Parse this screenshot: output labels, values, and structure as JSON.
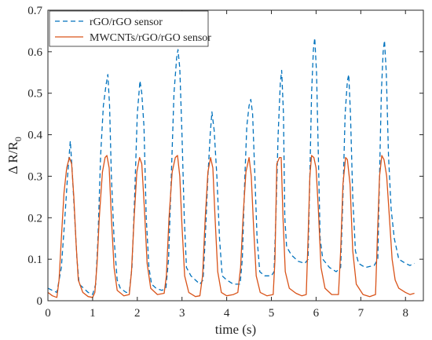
{
  "chart_data": {
    "type": "line",
    "xlabel": "time (s)",
    "ylabel_main": "Δ R/R",
    "ylabel_subscript": "0",
    "xlim": [
      0,
      8.4
    ],
    "ylim": [
      0,
      0.7
    ],
    "xticks": [
      0,
      1,
      2,
      3,
      4,
      5,
      6,
      7,
      8
    ],
    "yticks": [
      0,
      0.1,
      0.2,
      0.3,
      0.4,
      0.5,
      0.6,
      0.7
    ],
    "xtick_labels": [
      "0",
      "1",
      "2",
      "3",
      "4",
      "5",
      "6",
      "7",
      "8"
    ],
    "ytick_labels": [
      "0",
      "0.1",
      "0.2",
      "0.3",
      "0.4",
      "0.5",
      "0.6",
      "0.7"
    ],
    "grid": false,
    "legend_position": "top-left",
    "series": [
      {
        "name": "rGO/rGO sensor",
        "color": "#0072BD",
        "dash": "dashed",
        "points": [
          [
            0.0,
            0.03
          ],
          [
            0.1,
            0.025
          ],
          [
            0.2,
            0.02
          ],
          [
            0.3,
            0.08
          ],
          [
            0.38,
            0.2
          ],
          [
            0.44,
            0.3
          ],
          [
            0.5,
            0.385
          ],
          [
            0.55,
            0.3
          ],
          [
            0.6,
            0.2
          ],
          [
            0.65,
            0.1
          ],
          [
            0.7,
            0.04
          ],
          [
            0.8,
            0.03
          ],
          [
            0.9,
            0.02
          ],
          [
            1.0,
            0.015
          ],
          [
            1.07,
            0.04
          ],
          [
            1.12,
            0.15
          ],
          [
            1.18,
            0.35
          ],
          [
            1.24,
            0.47
          ],
          [
            1.3,
            0.52
          ],
          [
            1.34,
            0.545
          ],
          [
            1.38,
            0.47
          ],
          [
            1.42,
            0.3
          ],
          [
            1.48,
            0.15
          ],
          [
            1.55,
            0.05
          ],
          [
            1.62,
            0.03
          ],
          [
            1.75,
            0.02
          ],
          [
            1.82,
            0.02
          ],
          [
            1.88,
            0.08
          ],
          [
            1.94,
            0.25
          ],
          [
            2.0,
            0.45
          ],
          [
            2.06,
            0.53
          ],
          [
            2.1,
            0.5
          ],
          [
            2.15,
            0.42
          ],
          [
            2.2,
            0.2
          ],
          [
            2.26,
            0.08
          ],
          [
            2.32,
            0.04
          ],
          [
            2.42,
            0.03
          ],
          [
            2.55,
            0.025
          ],
          [
            2.64,
            0.03
          ],
          [
            2.7,
            0.1
          ],
          [
            2.76,
            0.3
          ],
          [
            2.82,
            0.5
          ],
          [
            2.88,
            0.585
          ],
          [
            2.91,
            0.605
          ],
          [
            2.95,
            0.56
          ],
          [
            3.0,
            0.4
          ],
          [
            3.05,
            0.2
          ],
          [
            3.1,
            0.08
          ],
          [
            3.2,
            0.06
          ],
          [
            3.3,
            0.05
          ],
          [
            3.4,
            0.04
          ],
          [
            3.47,
            0.05
          ],
          [
            3.52,
            0.15
          ],
          [
            3.58,
            0.3
          ],
          [
            3.63,
            0.4
          ],
          [
            3.67,
            0.455
          ],
          [
            3.72,
            0.41
          ],
          [
            3.78,
            0.3
          ],
          [
            3.84,
            0.15
          ],
          [
            3.9,
            0.06
          ],
          [
            4.0,
            0.05
          ],
          [
            4.15,
            0.04
          ],
          [
            4.3,
            0.04
          ],
          [
            4.35,
            0.1
          ],
          [
            4.4,
            0.28
          ],
          [
            4.45,
            0.42
          ],
          [
            4.5,
            0.47
          ],
          [
            4.54,
            0.485
          ],
          [
            4.58,
            0.45
          ],
          [
            4.63,
            0.3
          ],
          [
            4.68,
            0.15
          ],
          [
            4.74,
            0.07
          ],
          [
            4.85,
            0.06
          ],
          [
            5.0,
            0.06
          ],
          [
            5.06,
            0.07
          ],
          [
            5.1,
            0.2
          ],
          [
            5.15,
            0.4
          ],
          [
            5.2,
            0.525
          ],
          [
            5.23,
            0.555
          ],
          [
            5.27,
            0.45
          ],
          [
            5.3,
            0.2
          ],
          [
            5.34,
            0.13
          ],
          [
            5.45,
            0.11
          ],
          [
            5.6,
            0.095
          ],
          [
            5.75,
            0.09
          ],
          [
            5.82,
            0.1
          ],
          [
            5.86,
            0.3
          ],
          [
            5.9,
            0.5
          ],
          [
            5.94,
            0.605
          ],
          [
            5.97,
            0.633
          ],
          [
            6.01,
            0.55
          ],
          [
            6.05,
            0.35
          ],
          [
            6.09,
            0.15
          ],
          [
            6.15,
            0.1
          ],
          [
            6.3,
            0.08
          ],
          [
            6.45,
            0.07
          ],
          [
            6.55,
            0.08
          ],
          [
            6.6,
            0.25
          ],
          [
            6.65,
            0.45
          ],
          [
            6.7,
            0.53
          ],
          [
            6.73,
            0.545
          ],
          [
            6.77,
            0.45
          ],
          [
            6.82,
            0.25
          ],
          [
            6.88,
            0.12
          ],
          [
            6.95,
            0.09
          ],
          [
            7.1,
            0.08
          ],
          [
            7.3,
            0.085
          ],
          [
            7.38,
            0.1
          ],
          [
            7.42,
            0.3
          ],
          [
            7.46,
            0.5
          ],
          [
            7.5,
            0.6
          ],
          [
            7.53,
            0.627
          ],
          [
            7.57,
            0.55
          ],
          [
            7.62,
            0.35
          ],
          [
            7.68,
            0.22
          ],
          [
            7.75,
            0.15
          ],
          [
            7.85,
            0.1
          ],
          [
            8.0,
            0.09
          ],
          [
            8.1,
            0.085
          ],
          [
            8.2,
            0.09
          ]
        ]
      },
      {
        "name": "MWCNTs/rGO/rGO sensor",
        "color": "#D95319",
        "dash": "solid",
        "points": [
          [
            0.0,
            0.02
          ],
          [
            0.1,
            0.012
          ],
          [
            0.2,
            0.008
          ],
          [
            0.25,
            0.05
          ],
          [
            0.3,
            0.15
          ],
          [
            0.36,
            0.26
          ],
          [
            0.42,
            0.32
          ],
          [
            0.48,
            0.345
          ],
          [
            0.53,
            0.33
          ],
          [
            0.58,
            0.25
          ],
          [
            0.63,
            0.14
          ],
          [
            0.68,
            0.05
          ],
          [
            0.78,
            0.02
          ],
          [
            0.9,
            0.01
          ],
          [
            1.0,
            0.008
          ],
          [
            1.05,
            0.02
          ],
          [
            1.1,
            0.09
          ],
          [
            1.15,
            0.2
          ],
          [
            1.22,
            0.31
          ],
          [
            1.28,
            0.345
          ],
          [
            1.32,
            0.35
          ],
          [
            1.37,
            0.32
          ],
          [
            1.42,
            0.2
          ],
          [
            1.48,
            0.08
          ],
          [
            1.55,
            0.025
          ],
          [
            1.7,
            0.012
          ],
          [
            1.82,
            0.015
          ],
          [
            1.87,
            0.07
          ],
          [
            1.93,
            0.2
          ],
          [
            1.99,
            0.31
          ],
          [
            2.05,
            0.345
          ],
          [
            2.1,
            0.33
          ],
          [
            2.16,
            0.22
          ],
          [
            2.22,
            0.09
          ],
          [
            2.3,
            0.03
          ],
          [
            2.45,
            0.015
          ],
          [
            2.6,
            0.018
          ],
          [
            2.65,
            0.06
          ],
          [
            2.71,
            0.2
          ],
          [
            2.78,
            0.31
          ],
          [
            2.85,
            0.345
          ],
          [
            2.9,
            0.35
          ],
          [
            2.95,
            0.3
          ],
          [
            3.0,
            0.18
          ],
          [
            3.06,
            0.06
          ],
          [
            3.15,
            0.02
          ],
          [
            3.3,
            0.01
          ],
          [
            3.4,
            0.012
          ],
          [
            3.46,
            0.06
          ],
          [
            3.52,
            0.2
          ],
          [
            3.58,
            0.31
          ],
          [
            3.64,
            0.345
          ],
          [
            3.69,
            0.32
          ],
          [
            3.74,
            0.2
          ],
          [
            3.8,
            0.07
          ],
          [
            3.88,
            0.02
          ],
          [
            4.0,
            0.012
          ],
          [
            4.15,
            0.015
          ],
          [
            4.25,
            0.02
          ],
          [
            4.31,
            0.08
          ],
          [
            4.37,
            0.21
          ],
          [
            4.43,
            0.31
          ],
          [
            4.5,
            0.345
          ],
          [
            4.55,
            0.3
          ],
          [
            4.6,
            0.18
          ],
          [
            4.66,
            0.06
          ],
          [
            4.75,
            0.02
          ],
          [
            4.9,
            0.012
          ],
          [
            5.04,
            0.015
          ],
          [
            5.08,
            0.1
          ],
          [
            5.12,
            0.33
          ],
          [
            5.18,
            0.345
          ],
          [
            5.22,
            0.345
          ],
          [
            5.26,
            0.2
          ],
          [
            5.31,
            0.07
          ],
          [
            5.4,
            0.03
          ],
          [
            5.55,
            0.018
          ],
          [
            5.68,
            0.012
          ],
          [
            5.78,
            0.015
          ],
          [
            5.82,
            0.15
          ],
          [
            5.86,
            0.3
          ],
          [
            5.9,
            0.35
          ],
          [
            5.95,
            0.345
          ],
          [
            6.0,
            0.32
          ],
          [
            6.05,
            0.22
          ],
          [
            6.11,
            0.08
          ],
          [
            6.2,
            0.03
          ],
          [
            6.35,
            0.015
          ],
          [
            6.5,
            0.015
          ],
          [
            6.55,
            0.12
          ],
          [
            6.6,
            0.28
          ],
          [
            6.66,
            0.345
          ],
          [
            6.7,
            0.34
          ],
          [
            6.76,
            0.28
          ],
          [
            6.82,
            0.12
          ],
          [
            6.9,
            0.04
          ],
          [
            7.05,
            0.015
          ],
          [
            7.2,
            0.01
          ],
          [
            7.33,
            0.015
          ],
          [
            7.37,
            0.15
          ],
          [
            7.42,
            0.3
          ],
          [
            7.47,
            0.35
          ],
          [
            7.52,
            0.34
          ],
          [
            7.58,
            0.3
          ],
          [
            7.64,
            0.2
          ],
          [
            7.7,
            0.1
          ],
          [
            7.77,
            0.05
          ],
          [
            7.85,
            0.03
          ],
          [
            8.0,
            0.02
          ],
          [
            8.1,
            0.015
          ],
          [
            8.2,
            0.018
          ]
        ]
      }
    ]
  }
}
